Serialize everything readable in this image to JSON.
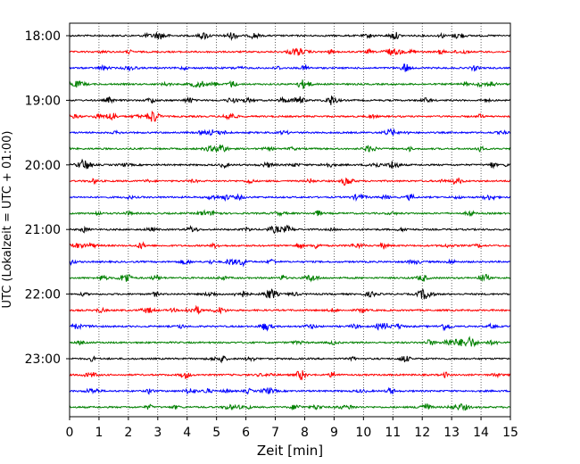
{
  "chart_data": {
    "type": "line",
    "title": "",
    "xlabel": "Zeit  [min]",
    "ylabel": "UTC (Lokalzeit = UTC + 01:00)",
    "xlim": [
      0,
      15
    ],
    "x_ticks": [
      0,
      1,
      2,
      3,
      4,
      5,
      6,
      7,
      8,
      9,
      10,
      11,
      12,
      13,
      14,
      15
    ],
    "y_tick_labels": [
      "18:00",
      "19:00",
      "20:00",
      "21:00",
      "22:00",
      "23:00"
    ],
    "grid": "vertical dotted",
    "legend": "none",
    "trace_minutes": 15,
    "trace_colors": [
      "#000000",
      "#ff0000",
      "#0000ff",
      "#008000"
    ],
    "traces": [
      {
        "start": "18:00"
      },
      {
        "start": "18:15"
      },
      {
        "start": "18:30"
      },
      {
        "start": "18:45"
      },
      {
        "start": "19:00"
      },
      {
        "start": "19:15"
      },
      {
        "start": "19:30"
      },
      {
        "start": "19:45"
      },
      {
        "start": "20:00"
      },
      {
        "start": "20:15"
      },
      {
        "start": "20:30"
      },
      {
        "start": "20:45"
      },
      {
        "start": "21:00"
      },
      {
        "start": "21:15"
      },
      {
        "start": "21:30"
      },
      {
        "start": "21:45"
      },
      {
        "start": "22:00"
      },
      {
        "start": "22:15"
      },
      {
        "start": "22:30"
      },
      {
        "start": "22:45"
      },
      {
        "start": "23:00"
      },
      {
        "start": "23:15"
      },
      {
        "start": "23:30"
      },
      {
        "start": "23:45"
      }
    ]
  }
}
